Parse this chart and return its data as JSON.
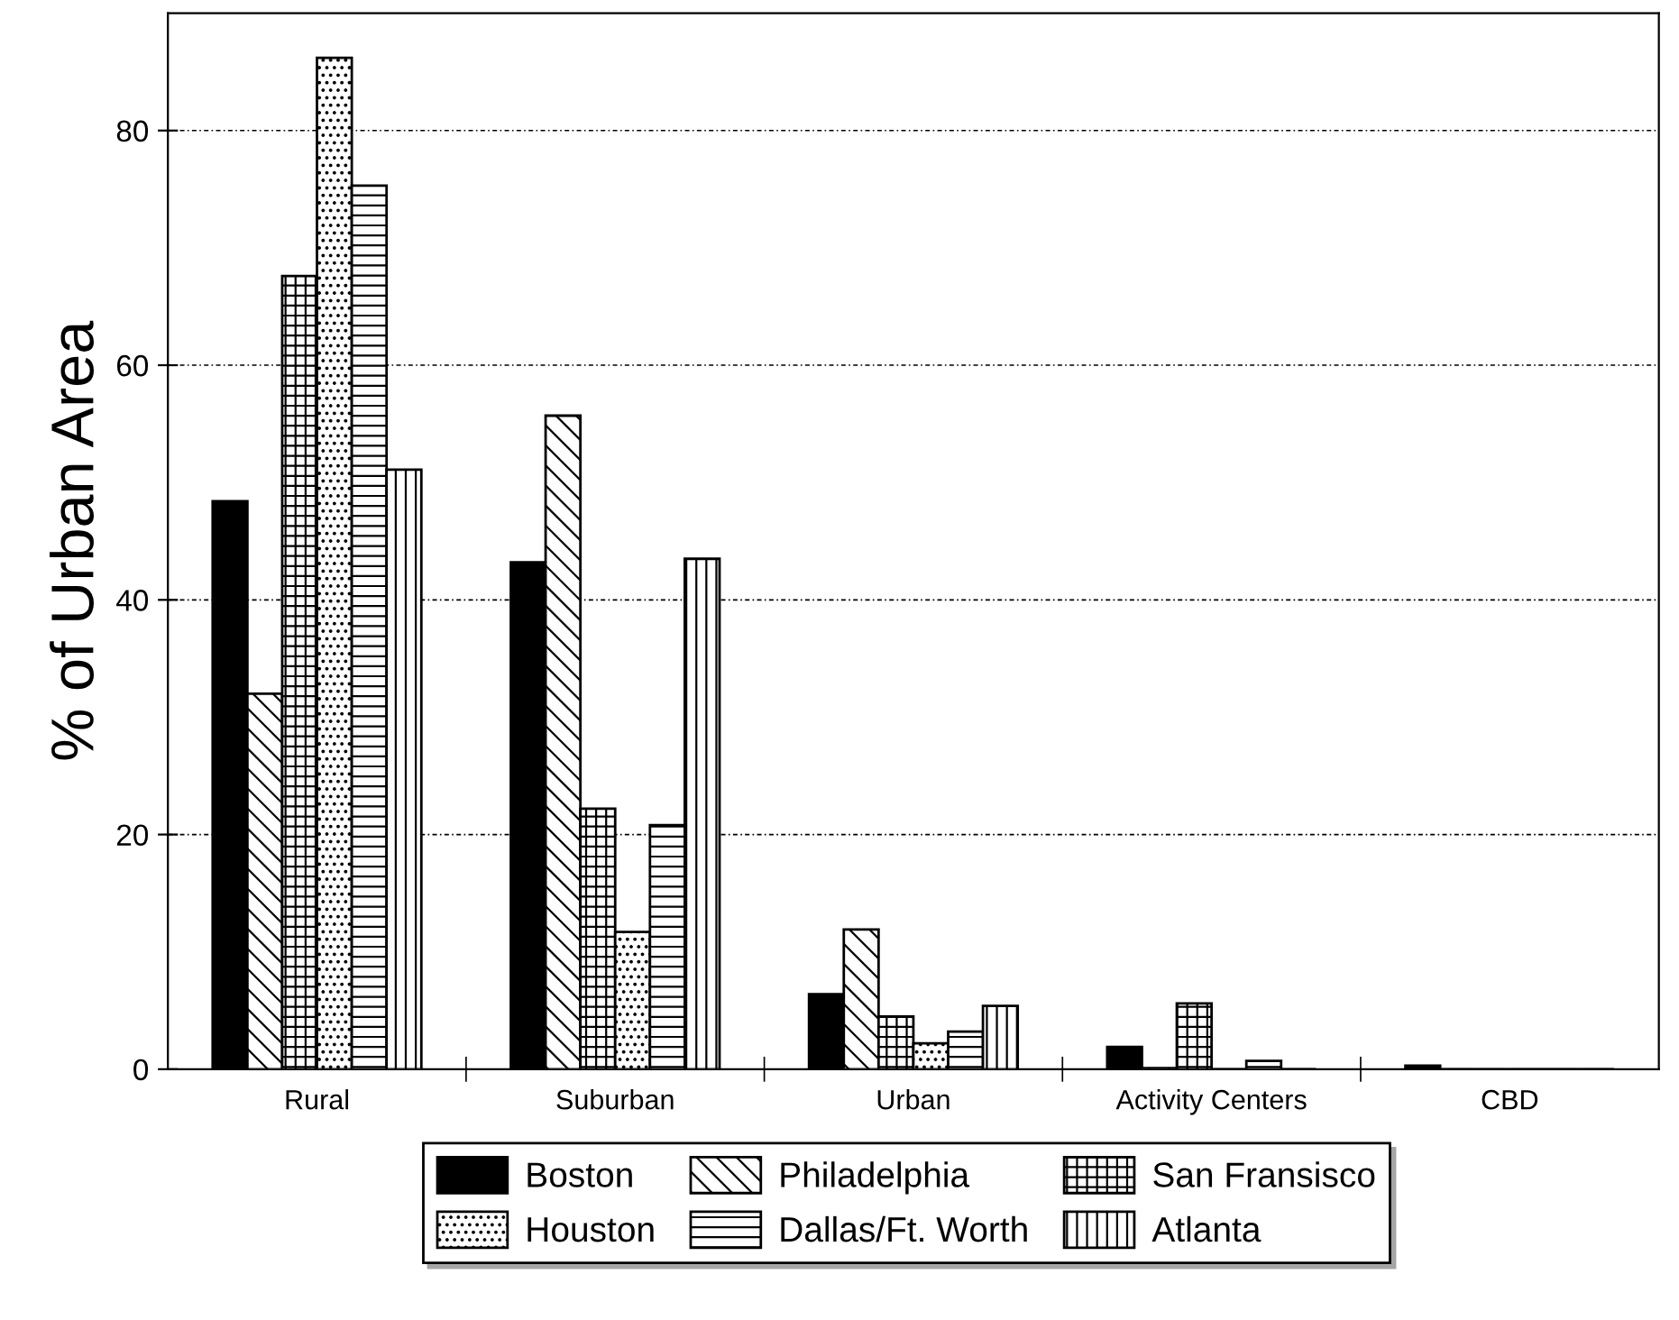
{
  "chart_data": {
    "type": "bar",
    "ylabel": "% of Urban Area",
    "categories": [
      "Rural",
      "Suburban",
      "Urban",
      "Activity Centers",
      "CBD"
    ],
    "series": [
      {
        "name": "Boston",
        "color": "#000000",
        "values": [
          48.4,
          43.2,
          6.4,
          1.9,
          0.3
        ]
      },
      {
        "name": "Philadelphia",
        "color": "#000000",
        "values": [
          32.0,
          55.7,
          11.9,
          0.1,
          0
        ]
      },
      {
        "name": "San Fransisco",
        "color": "#000000",
        "values": [
          67.6,
          22.2,
          4.5,
          5.6,
          0
        ]
      },
      {
        "name": "Houston",
        "color": "#000000",
        "values": [
          86.2,
          11.7,
          2.2,
          0,
          0
        ]
      },
      {
        "name": "Dallas/Ft. Worth",
        "color": "#000000",
        "values": [
          75.3,
          20.8,
          3.2,
          0.7,
          0
        ]
      },
      {
        "name": "Atlanta",
        "color": "#000000",
        "values": [
          51.1,
          43.5,
          5.4,
          0,
          0
        ]
      }
    ],
    "ylim": [
      0,
      90
    ],
    "yticks": [
      0,
      20,
      40,
      60,
      80
    ],
    "grid": "y",
    "legend": "bottom"
  }
}
